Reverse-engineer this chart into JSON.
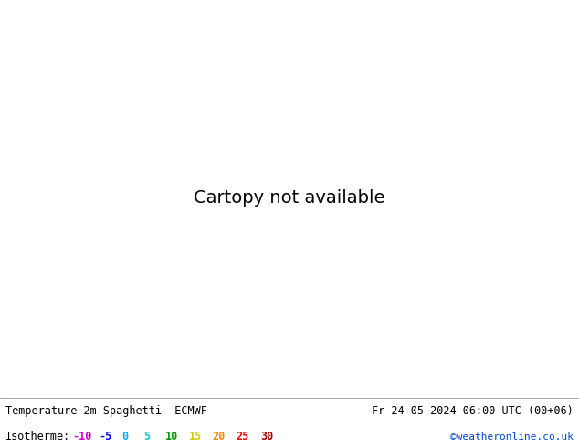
{
  "title_left": "Temperature 2m Spaghetti  ECMWF",
  "title_right": "Fr 24-05-2024 06:00 UTC (00+06)",
  "credit": "©weatheronline.co.uk",
  "background_color": "#ffffff",
  "map_bg_land": "#c8f0a0",
  "map_bg_sea": "#f0f0f0",
  "map_bg_ocean": "#e8e8f0",
  "isotherm_values": [
    -10,
    -5,
    0,
    5,
    10,
    15,
    20,
    25,
    30
  ],
  "isotherm_colors": [
    "#cc00cc",
    "#0000ff",
    "#00aaff",
    "#00cccc",
    "#009900",
    "#cccc00",
    "#ff8800",
    "#ff0000",
    "#aa0000"
  ],
  "footer_text_color": "#000000",
  "credit_color": "#0044cc",
  "figsize": [
    6.34,
    4.9
  ],
  "dpi": 100,
  "extent": [
    -60,
    50,
    25,
    75
  ],
  "n_members": 51
}
